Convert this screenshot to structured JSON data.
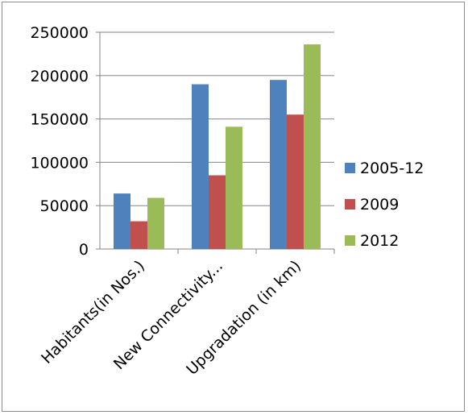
{
  "chart_data": {
    "type": "bar",
    "categories": [
      "Habitants(in Nos.)",
      "New Connectivity...",
      "Upgradation (in km)"
    ],
    "series": [
      {
        "name": "2005-12",
        "values": [
          64000,
          190000,
          195000
        ],
        "color": "#4F81BD"
      },
      {
        "name": "2009",
        "values": [
          32000,
          85000,
          155000
        ],
        "color": "#C0504D"
      },
      {
        "name": "2012",
        "values": [
          59000,
          141000,
          236000
        ],
        "color": "#9BBB59"
      }
    ],
    "yticks": [
      "0",
      "50000",
      "100000",
      "150000",
      "200000",
      "250000"
    ],
    "ylim": [
      0,
      250000
    ],
    "grid": true,
    "legend": "right",
    "title": "",
    "xlabel": "",
    "ylabel": ""
  }
}
